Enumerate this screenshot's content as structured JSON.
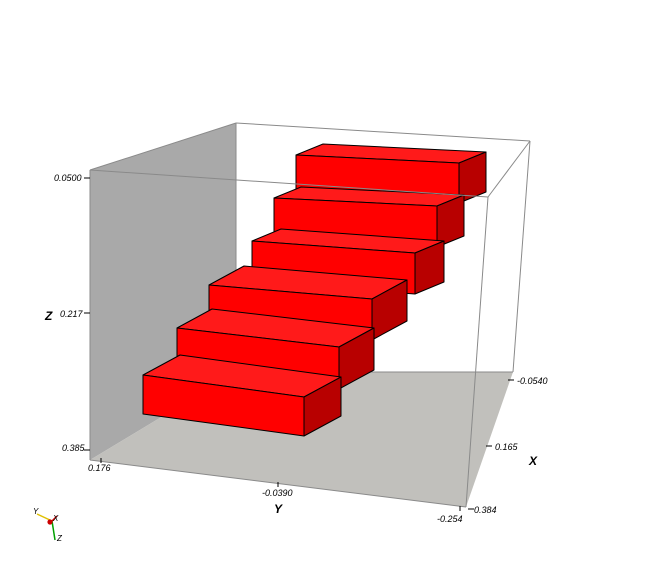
{
  "viewer": {
    "axes": {
      "x": {
        "label": "X",
        "ticks": [
          "-0.0540",
          "0.165",
          "0.384"
        ]
      },
      "y": {
        "label": "Y",
        "ticks": [
          "0.176",
          "-0.0390",
          "-0.254"
        ]
      },
      "z": {
        "label": "Z",
        "ticks": [
          "0.0500",
          "0.217",
          "0.385"
        ]
      }
    },
    "triad": {
      "y_label": "Y",
      "x_label": "X",
      "z_label": "Z"
    },
    "colors": {
      "step_top": "#ff1a1a",
      "step_front": "#ff0000",
      "step_side": "#b80000",
      "back_wall": "#a9a9a9",
      "floor": "#c1c0bc"
    },
    "model": {
      "step_count": 6
    }
  }
}
